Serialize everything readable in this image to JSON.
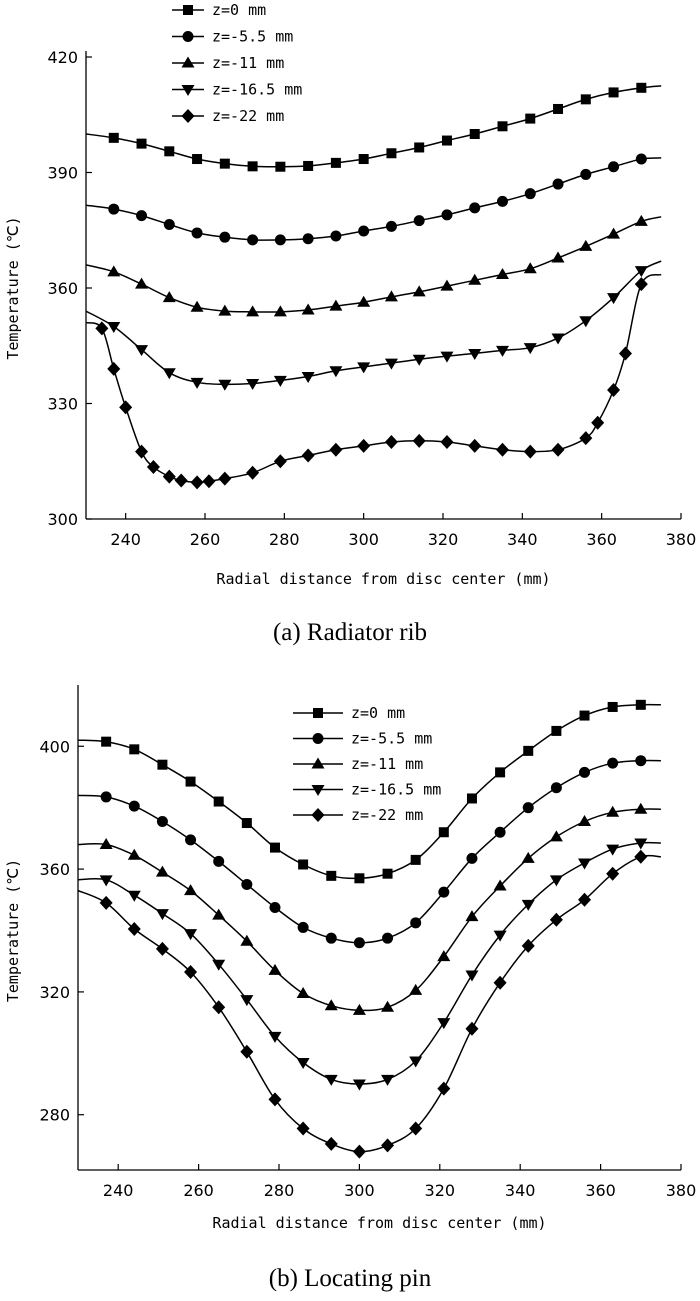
{
  "chart_data": [
    {
      "type": "line",
      "caption": "(a) Radiator rib",
      "xlabel": "Radial distance from disc center (mm)",
      "ylabel": "Temperature (℃)",
      "xlim": [
        230,
        380
      ],
      "ylim": [
        300,
        420
      ],
      "xticks": [
        240,
        260,
        280,
        300,
        320,
        340,
        360,
        380
      ],
      "yticks": [
        300,
        330,
        360,
        390,
        420
      ],
      "legend_position": "top-center",
      "series": [
        {
          "name": "z=0 mm",
          "marker": "square",
          "x": [
            230,
            237,
            244,
            251,
            258,
            265,
            272,
            279,
            286,
            293,
            300,
            307,
            314,
            321,
            328,
            335,
            342,
            349,
            356,
            363,
            370,
            375
          ],
          "y": [
            400,
            399,
            397.5,
            395.5,
            393.5,
            392.3,
            391.6,
            391.5,
            391.7,
            392.5,
            393.5,
            395,
            396.5,
            398.3,
            400,
            402,
            404,
            406.5,
            409,
            410.8,
            412,
            412.5
          ]
        },
        {
          "name": "z=-5.5 mm",
          "marker": "circle",
          "x": [
            230,
            237,
            244,
            251,
            258,
            265,
            272,
            279,
            286,
            293,
            300,
            307,
            314,
            321,
            328,
            335,
            342,
            349,
            356,
            363,
            370,
            375
          ],
          "y": [
            381.5,
            380.5,
            378.8,
            376.5,
            374.3,
            373.2,
            372.5,
            372.5,
            372.8,
            373.5,
            374.8,
            376,
            377.5,
            379,
            380.8,
            382.5,
            384.5,
            387,
            389.5,
            391.5,
            393.5,
            393.8
          ]
        },
        {
          "name": "z=-11 mm",
          "marker": "triangle-up",
          "x": [
            230,
            237,
            244,
            251,
            258,
            265,
            272,
            279,
            286,
            293,
            300,
            307,
            314,
            321,
            328,
            335,
            342,
            349,
            356,
            363,
            370,
            375
          ],
          "y": [
            366,
            364.2,
            361,
            357.5,
            355,
            354,
            353.8,
            353.8,
            354.3,
            355.3,
            356.3,
            357.7,
            359,
            360.5,
            362,
            363.5,
            365,
            367.8,
            370.8,
            374,
            377.3,
            378.5
          ]
        },
        {
          "name": "z=-16.5 mm",
          "marker": "triangle-down",
          "x": [
            230,
            237,
            244,
            251,
            258,
            265,
            272,
            279,
            286,
            293,
            300,
            307,
            314,
            321,
            328,
            335,
            342,
            349,
            356,
            363,
            370,
            375
          ],
          "y": [
            354,
            350,
            344,
            338,
            335.5,
            335,
            335.2,
            336,
            337,
            338.5,
            339.5,
            340.5,
            341.5,
            342.3,
            343,
            343.8,
            344.5,
            347,
            351.5,
            357.5,
            364.5,
            367
          ]
        },
        {
          "name": "z=-22 mm",
          "marker": "diamond",
          "x": [
            230,
            234,
            237,
            240,
            244,
            247,
            251,
            254,
            258,
            261,
            265,
            272,
            279,
            286,
            293,
            300,
            307,
            314,
            321,
            328,
            335,
            342,
            349,
            356,
            359,
            363,
            366,
            370,
            375
          ],
          "y": [
            351,
            349.5,
            339,
            329,
            317.5,
            313.5,
            311,
            310,
            309.5,
            309.8,
            310.5,
            312,
            315,
            316.5,
            318,
            319,
            320,
            320.3,
            320,
            319,
            318,
            317.5,
            318,
            321,
            325,
            333.5,
            343,
            361,
            363.5
          ]
        }
      ]
    },
    {
      "type": "line",
      "caption": "(b) Locating pin",
      "xlabel": "Radial distance from disc center (mm)",
      "ylabel": "Temperature (℃)",
      "xlim": [
        230,
        380
      ],
      "ylim": [
        262,
        418
      ],
      "xticks": [
        240,
        260,
        280,
        300,
        320,
        340,
        360,
        380
      ],
      "yticks": [
        280,
        320,
        360,
        400
      ],
      "legend_position": "top-center",
      "series": [
        {
          "name": "z=0 mm",
          "marker": "square",
          "x": [
            230,
            237,
            244,
            251,
            258,
            265,
            272,
            279,
            286,
            293,
            300,
            307,
            314,
            321,
            328,
            335,
            342,
            349,
            356,
            363,
            370,
            375
          ],
          "y": [
            402,
            401.5,
            399,
            394,
            388.5,
            382,
            375,
            367,
            361.5,
            357.8,
            357,
            358.5,
            363,
            372,
            383,
            391.5,
            398.5,
            405,
            410,
            412.8,
            413.5,
            413.5
          ]
        },
        {
          "name": "z=-5.5 mm",
          "marker": "circle",
          "x": [
            230,
            237,
            244,
            251,
            258,
            265,
            272,
            279,
            286,
            293,
            300,
            307,
            314,
            321,
            328,
            335,
            342,
            349,
            356,
            363,
            370,
            375
          ],
          "y": [
            384,
            383.5,
            380.5,
            375.5,
            369.5,
            362.5,
            355,
            347.5,
            341,
            337.5,
            336,
            337.5,
            342.5,
            352.5,
            363.5,
            372,
            380,
            386.5,
            391.5,
            394.5,
            395.3,
            395.3
          ]
        },
        {
          "name": "z=-11 mm",
          "marker": "triangle-up",
          "x": [
            230,
            237,
            244,
            251,
            258,
            265,
            272,
            279,
            286,
            293,
            300,
            307,
            314,
            321,
            328,
            335,
            342,
            349,
            356,
            363,
            370,
            375
          ],
          "y": [
            368,
            368,
            364.5,
            359,
            353,
            345,
            336.5,
            327,
            319.5,
            315.5,
            314,
            315,
            320.5,
            331.5,
            344.5,
            354.5,
            363.5,
            370.5,
            375.5,
            378.5,
            379.5,
            379.5
          ]
        },
        {
          "name": "z=-16.5 mm",
          "marker": "triangle-down",
          "x": [
            230,
            237,
            244,
            251,
            258,
            265,
            272,
            279,
            286,
            293,
            300,
            307,
            314,
            321,
            328,
            335,
            342,
            349,
            356,
            363,
            370,
            375
          ],
          "y": [
            356.5,
            356.5,
            351.5,
            345.5,
            339,
            329,
            317.5,
            305.5,
            297,
            291.5,
            290,
            291.5,
            297.5,
            310,
            325.5,
            338.5,
            348.5,
            356.5,
            362,
            366.5,
            368.5,
            368.5
          ]
        },
        {
          "name": "z=-22 mm",
          "marker": "diamond",
          "x": [
            230,
            237,
            244,
            251,
            258,
            265,
            272,
            279,
            286,
            293,
            300,
            307,
            314,
            321,
            328,
            335,
            342,
            349,
            356,
            363,
            370,
            375
          ],
          "y": [
            353,
            349,
            340.5,
            334,
            326.5,
            315,
            300.5,
            285,
            275.5,
            270.5,
            268,
            270,
            275.5,
            288.5,
            308,
            323,
            335,
            343.5,
            350,
            358.5,
            364,
            364
          ]
        }
      ]
    }
  ]
}
